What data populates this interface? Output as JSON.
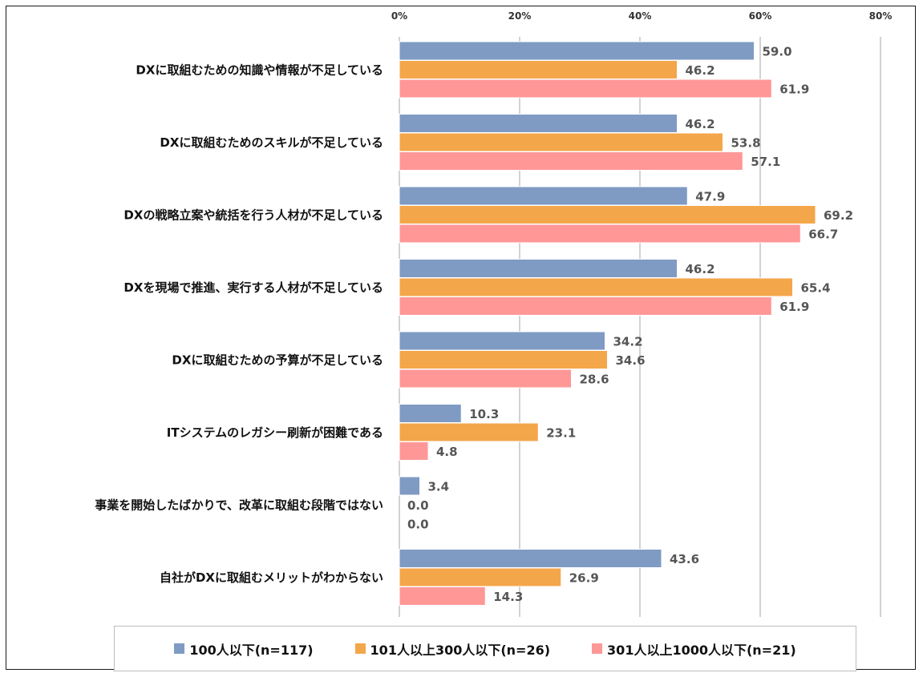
{
  "chart_data": {
    "type": "bar",
    "orientation": "horizontal",
    "categories": [
      "DXに取組むための知識や情報が不足している",
      "DXに取組むためのスキルが不足している",
      "DXの戦略立案や統括を行う人材が不足している",
      "DXを現場で推進、実行する人材が不足している",
      "DXに取組むための予算が不足している",
      "ITシステムのレガシー刷新が困難である",
      "事業を開始したばかりで、改革に取組む段階ではない",
      "自社がDXに取組むメリットがわからない"
    ],
    "series": [
      {
        "name": "100人以下(n=117)",
        "color": "#7f9bc3",
        "values": [
          59.0,
          46.2,
          47.9,
          46.2,
          34.2,
          10.3,
          3.4,
          43.6
        ],
        "labels": [
          "59.0",
          "46.2",
          "47.9",
          "46.2",
          "34.2",
          "10.3",
          "3.4",
          "43.6"
        ]
      },
      {
        "name": "101人以上300人以下(n=26)",
        "color": "#f4a64b",
        "values": [
          46.2,
          53.8,
          69.2,
          65.4,
          34.6,
          23.1,
          0.0,
          26.9
        ],
        "labels": [
          "46.2",
          "53.8",
          "69.2",
          "65.4",
          "34.6",
          "23.1",
          "0.0",
          "26.9"
        ]
      },
      {
        "name": "301人以上1000人以下(n=21)",
        "color": "#ff9797",
        "values": [
          61.9,
          57.1,
          66.7,
          61.9,
          28.6,
          4.8,
          0.0,
          14.3
        ],
        "labels": [
          "61.9",
          "57.1",
          "66.7",
          "61.9",
          "28.6",
          "4.8",
          "0.0",
          "14.3"
        ]
      }
    ],
    "xlim": [
      0,
      80
    ],
    "x_ticks": [
      "0%",
      "20%",
      "40%",
      "60%",
      "80%"
    ],
    "x_tick_values": [
      0,
      20,
      40,
      60,
      80
    ],
    "grid": true,
    "legend_position": "bottom"
  }
}
